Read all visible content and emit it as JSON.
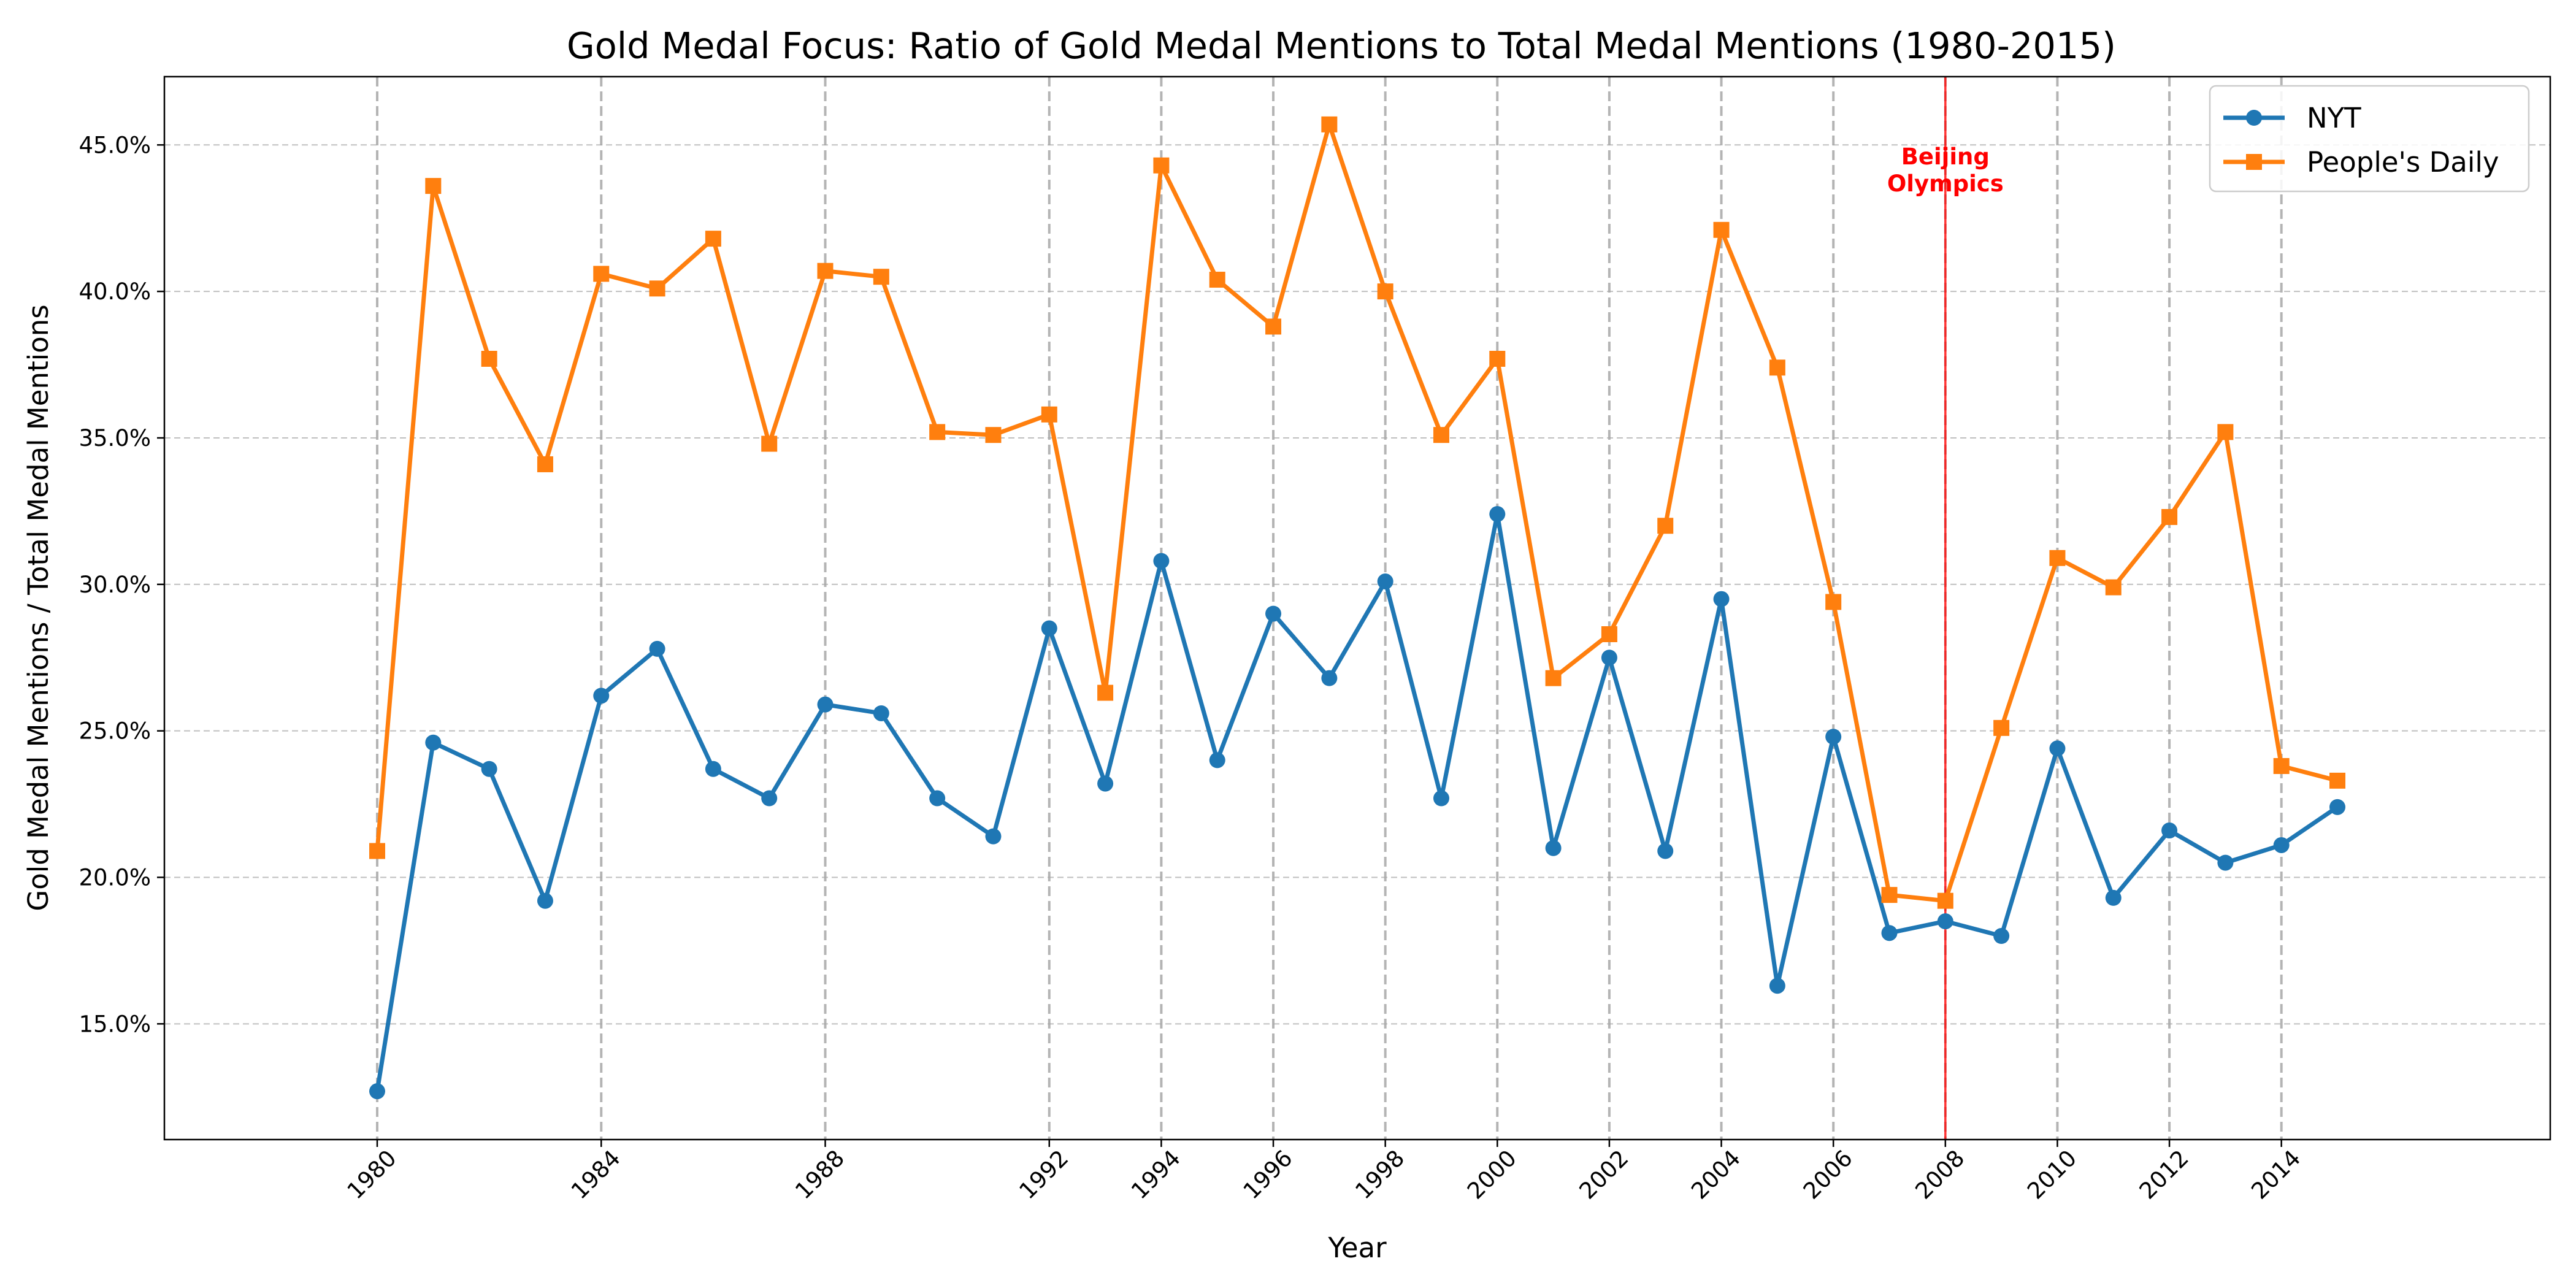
{
  "chart_data": {
    "type": "line",
    "title": "Gold Medal Focus: Ratio of Gold Medal Mentions to Total Medal Mentions (1980-2015)",
    "xlabel": "Year",
    "ylabel": "Gold Medal Mentions / Total Medal Mentions",
    "xlim": [
      1976.2,
      2018.8
    ],
    "ylim": [
      0.1105,
      0.4733
    ],
    "x": [
      1980,
      1981,
      1982,
      1983,
      1984,
      1985,
      1986,
      1987,
      1988,
      1989,
      1990,
      1991,
      1992,
      1993,
      1994,
      1995,
      1996,
      1997,
      1998,
      1999,
      2000,
      2001,
      2002,
      2003,
      2004,
      2005,
      2006,
      2007,
      2008,
      2009,
      2010,
      2011,
      2012,
      2013,
      2014,
      2015
    ],
    "x_ticks": [
      1980,
      1984,
      1988,
      1992,
      1994,
      1996,
      1998,
      2000,
      2002,
      2004,
      2006,
      2008,
      2010,
      2012,
      2014
    ],
    "y_ticks": [
      0.15,
      0.2,
      0.25,
      0.3,
      0.35,
      0.4,
      0.45
    ],
    "y_tick_labels": [
      "15.0%",
      "20.0%",
      "25.0%",
      "30.0%",
      "35.0%",
      "40.0%",
      "45.0%"
    ],
    "grid": true,
    "legend_position": "top-right",
    "series": [
      {
        "name": "NYT",
        "color": "#1f77b4",
        "marker": "circle",
        "values": [
          0.127,
          0.246,
          0.237,
          0.192,
          0.262,
          0.278,
          0.237,
          0.227,
          0.259,
          0.256,
          0.227,
          0.214,
          0.285,
          0.232,
          0.308,
          0.24,
          0.29,
          0.268,
          0.301,
          0.227,
          0.324,
          0.21,
          0.275,
          0.209,
          0.295,
          0.163,
          0.248,
          0.181,
          0.185,
          0.18,
          0.244,
          0.193,
          0.216,
          0.205,
          0.211,
          0.224
        ]
      },
      {
        "name": "People's Daily",
        "color": "#ff7f0e",
        "marker": "square",
        "values": [
          0.209,
          0.436,
          0.377,
          0.341,
          0.406,
          0.401,
          0.418,
          0.348,
          0.407,
          0.405,
          0.352,
          0.351,
          0.358,
          0.263,
          0.443,
          0.404,
          0.388,
          0.457,
          0.4,
          0.351,
          0.377,
          0.268,
          0.283,
          0.32,
          0.421,
          0.374,
          0.294,
          0.194,
          0.192,
          0.251,
          0.309,
          0.299,
          0.323,
          0.352,
          0.238,
          0.233
        ]
      }
    ],
    "annotations": [
      {
        "x": 2008,
        "line1": "Beijing",
        "line2": "Olympics",
        "color": "#ff0000"
      }
    ]
  }
}
